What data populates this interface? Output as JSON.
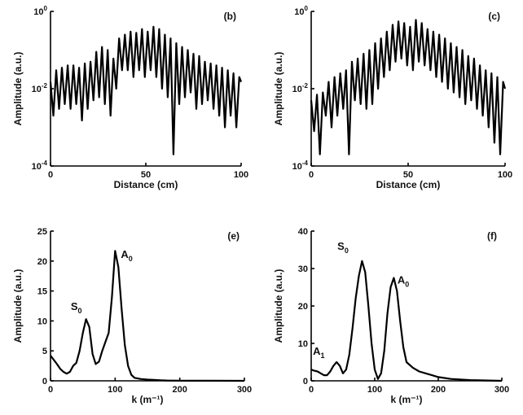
{
  "chart_data": [
    {
      "id": "b",
      "panel_label": "(b)",
      "type": "line",
      "xlabel": "Distance (cm)",
      "ylabel": "Amplitude (a.u.)",
      "xlim": [
        0,
        100
      ],
      "ylim": [
        0.0001,
        1
      ],
      "yscale": "log",
      "xticks": [
        0,
        50,
        100
      ],
      "yticks": [
        {
          "value": 1,
          "base": "10",
          "exp": "0"
        },
        {
          "value": 0.01,
          "base": "10",
          "exp": "-2"
        },
        {
          "value": 0.0001,
          "base": "10",
          "exp": "-4"
        }
      ],
      "grid": false,
      "series": [
        {
          "x": [
            0,
            1.5,
            3,
            4.5,
            6,
            7.5,
            9,
            10.5,
            12,
            13.5,
            15,
            16.5,
            18,
            19.5,
            21,
            22.5,
            24,
            25.5,
            27,
            28.5,
            30,
            31.5,
            33,
            34.5,
            36,
            37.5,
            39,
            40.5,
            42,
            43.5,
            45,
            46.5,
            48,
            49.5,
            51,
            52.5,
            54,
            55.5,
            57,
            58.5,
            60,
            61.5,
            63,
            64.5,
            66,
            67.5,
            69,
            70.5,
            72,
            73.5,
            75,
            76.5,
            78,
            79.5,
            81,
            82.5,
            84,
            85.5,
            87,
            88.5,
            90,
            91.5,
            93,
            94.5,
            96,
            97.5,
            99,
            100
          ],
          "y": [
            0.015,
            0.002,
            0.03,
            0.003,
            0.035,
            0.004,
            0.04,
            0.003,
            0.04,
            0.004,
            0.035,
            0.0015,
            0.045,
            0.003,
            0.05,
            0.005,
            0.09,
            0.006,
            0.12,
            0.004,
            0.1,
            0.002,
            0.06,
            0.01,
            0.2,
            0.03,
            0.25,
            0.03,
            0.3,
            0.02,
            0.28,
            0.03,
            0.35,
            0.02,
            0.3,
            0.03,
            0.4,
            0.02,
            0.35,
            0.01,
            0.25,
            0.006,
            0.2,
            0.0002,
            0.15,
            0.004,
            0.12,
            0.006,
            0.1,
            0.008,
            0.08,
            0.003,
            0.07,
            0.004,
            0.05,
            0.005,
            0.045,
            0.003,
            0.04,
            0.002,
            0.035,
            0.001,
            0.03,
            0.002,
            0.025,
            0.001,
            0.02,
            0.015
          ]
        }
      ]
    },
    {
      "id": "c",
      "panel_label": "(c)",
      "type": "line",
      "xlabel": "Distance (cm)",
      "ylabel": "Amplitude (a.u.)",
      "xlim": [
        0,
        100
      ],
      "ylim": [
        0.0001,
        1
      ],
      "yscale": "log",
      "xticks": [
        0,
        50,
        100
      ],
      "yticks": [
        {
          "value": 1,
          "base": "10",
          "exp": "0"
        },
        {
          "value": 0.01,
          "base": "10",
          "exp": "-2"
        },
        {
          "value": 0.0001,
          "base": "10",
          "exp": "-4"
        }
      ],
      "grid": false,
      "series": [
        {
          "x": [
            0,
            1.5,
            3,
            4.5,
            6,
            7.5,
            9,
            10.5,
            12,
            13.5,
            15,
            16.5,
            18,
            19.5,
            21,
            22.5,
            24,
            25.5,
            27,
            28.5,
            30,
            31.5,
            33,
            34.5,
            36,
            37.5,
            39,
            40.5,
            42,
            43.5,
            45,
            46.5,
            48,
            49.5,
            51,
            52.5,
            54,
            55.5,
            57,
            58.5,
            60,
            61.5,
            63,
            64.5,
            66,
            67.5,
            69,
            70.5,
            72,
            73.5,
            75,
            76.5,
            78,
            79.5,
            81,
            82.5,
            84,
            85.5,
            87,
            88.5,
            90,
            91.5,
            93,
            94.5,
            96,
            97.5,
            99,
            100
          ],
          "y": [
            0.005,
            0.0008,
            0.007,
            0.0002,
            0.008,
            0.002,
            0.015,
            0.001,
            0.02,
            0.002,
            0.025,
            0.003,
            0.03,
            0.0002,
            0.05,
            0.005,
            0.06,
            0.004,
            0.08,
            0.003,
            0.1,
            0.004,
            0.15,
            0.01,
            0.2,
            0.02,
            0.3,
            0.03,
            0.45,
            0.05,
            0.55,
            0.06,
            0.5,
            0.04,
            0.4,
            0.03,
            0.6,
            0.05,
            0.5,
            0.04,
            0.35,
            0.03,
            0.3,
            0.02,
            0.25,
            0.015,
            0.2,
            0.01,
            0.15,
            0.008,
            0.12,
            0.006,
            0.1,
            0.004,
            0.07,
            0.005,
            0.06,
            0.003,
            0.04,
            0.002,
            0.03,
            0.001,
            0.025,
            0.0004,
            0.02,
            0.0002,
            0.015,
            0.01
          ]
        }
      ]
    },
    {
      "id": "e",
      "panel_label": "(e)",
      "type": "line",
      "xlabel": "k (m⁻¹)",
      "ylabel": "Amplitude (a.u.)",
      "xlim": [
        0,
        300
      ],
      "ylim": [
        0,
        25
      ],
      "yscale": "linear",
      "xticks": [
        0,
        100,
        200,
        300
      ],
      "yticks": [
        {
          "value": 0,
          "base": "0",
          "exp": ""
        },
        {
          "value": 5,
          "base": "5",
          "exp": ""
        },
        {
          "value": 10,
          "base": "10",
          "exp": ""
        },
        {
          "value": 15,
          "base": "15",
          "exp": ""
        },
        {
          "value": 20,
          "base": "20",
          "exp": ""
        },
        {
          "value": 25,
          "base": "25",
          "exp": ""
        }
      ],
      "grid": false,
      "annotations": [
        {
          "text": "S",
          "sub": "0",
          "x": 40,
          "y": 11.8
        },
        {
          "text": "A",
          "sub": "0",
          "x": 118,
          "y": 20.5
        }
      ],
      "series": [
        {
          "x": [
            0,
            5,
            10,
            15,
            20,
            25,
            30,
            35,
            40,
            45,
            50,
            55,
            60,
            65,
            70,
            75,
            80,
            85,
            90,
            95,
            100,
            105,
            110,
            115,
            120,
            125,
            130,
            140,
            150,
            160,
            170,
            180,
            200,
            220,
            250,
            300
          ],
          "y": [
            4.2,
            3.5,
            2.8,
            2,
            1.5,
            1.2,
            1.5,
            2.5,
            3,
            5,
            8,
            10.3,
            9,
            4.5,
            2.8,
            3.2,
            5,
            6.5,
            8,
            14,
            21.7,
            19,
            12,
            6,
            2.5,
            1,
            0.5,
            0.3,
            0.2,
            0.15,
            0.1,
            0.05,
            0.03,
            0.02,
            0.01,
            0
          ]
        }
      ]
    },
    {
      "id": "f",
      "panel_label": "(f)",
      "type": "line",
      "xlabel": "k (m⁻¹)",
      "ylabel": "Amplitude (a.u.)",
      "xlim": [
        0,
        300
      ],
      "ylim": [
        0,
        40
      ],
      "yscale": "linear",
      "xticks": [
        0,
        100,
        200,
        300
      ],
      "yticks": [
        {
          "value": 0,
          "base": "0",
          "exp": ""
        },
        {
          "value": 10,
          "base": "10",
          "exp": ""
        },
        {
          "value": 20,
          "base": "20",
          "exp": ""
        },
        {
          "value": 30,
          "base": "30",
          "exp": ""
        },
        {
          "value": 40,
          "base": "40",
          "exp": ""
        }
      ],
      "grid": false,
      "annotations": [
        {
          "text": "S",
          "sub": "0",
          "x": 50,
          "y": 35
        },
        {
          "text": "A",
          "sub": "0",
          "x": 145,
          "y": 26
        },
        {
          "text": "A",
          "sub": "1",
          "x": 12,
          "y": 7
        }
      ],
      "series": [
        {
          "x": [
            0,
            5,
            10,
            15,
            20,
            25,
            30,
            35,
            40,
            45,
            50,
            55,
            60,
            65,
            70,
            75,
            80,
            85,
            90,
            95,
            100,
            105,
            110,
            115,
            120,
            125,
            130,
            135,
            140,
            145,
            150,
            160,
            170,
            180,
            190,
            200,
            220,
            250,
            300
          ],
          "y": [
            3,
            2.7,
            2.5,
            2,
            1.5,
            1.5,
            2.5,
            4,
            5,
            4,
            2,
            3,
            7,
            14,
            22,
            28,
            32,
            29,
            20,
            10,
            3,
            0.5,
            2,
            8,
            18,
            25,
            27.5,
            24,
            16,
            9,
            5,
            3.5,
            2.5,
            2,
            1.5,
            1,
            0.5,
            0.2,
            0
          ]
        }
      ]
    }
  ]
}
